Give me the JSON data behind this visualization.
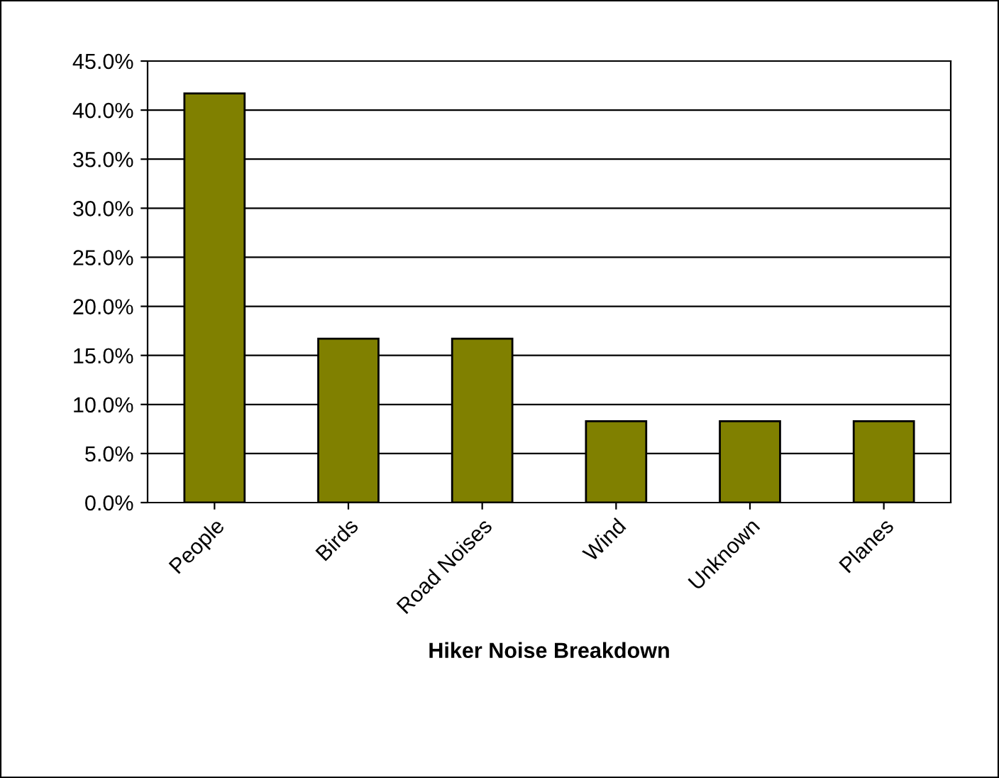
{
  "chart_data": {
    "type": "bar",
    "xlabel": "Hiker Noise Breakdown",
    "categories": [
      "People",
      "Birds",
      "Road Noises",
      "Wind",
      "Unknown",
      "Planes"
    ],
    "values": [
      41.7,
      16.7,
      16.7,
      8.3,
      8.3,
      8.3
    ],
    "color": "#808000",
    "ylim": [
      0,
      45
    ],
    "yticks": [
      {
        "value": 0,
        "label": "0.0%"
      },
      {
        "value": 5,
        "label": "5.0%"
      },
      {
        "value": 10,
        "label": "10.0%"
      },
      {
        "value": 15,
        "label": "15.0%"
      },
      {
        "value": 20,
        "label": "20.0%"
      },
      {
        "value": 25,
        "label": "25.0%"
      },
      {
        "value": 30,
        "label": "30.0%"
      },
      {
        "value": 35,
        "label": "35.0%"
      },
      {
        "value": 40,
        "label": "40.0%"
      },
      {
        "value": 45,
        "label": "45.0%"
      }
    ],
    "grid": "y",
    "legend": false
  }
}
